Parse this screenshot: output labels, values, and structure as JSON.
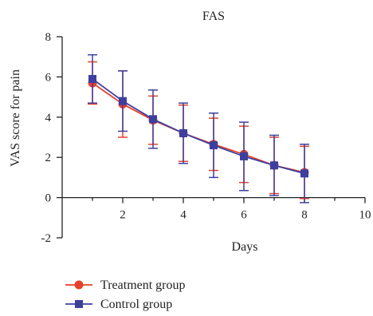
{
  "chart_data": {
    "type": "line",
    "title": "FAS",
    "xlabel": "Days",
    "ylabel": "VAS score for pain",
    "xlim": [
      0,
      10
    ],
    "ylim": [
      -2,
      8
    ],
    "xticks": [
      "2",
      "4",
      "6",
      "8",
      "10"
    ],
    "yticks": [
      "-2",
      "0",
      "2",
      "4",
      "6",
      "8"
    ],
    "grid": false,
    "legend_position": "bottom-left",
    "series": [
      {
        "name": "Treatment group",
        "color": "#e8412a",
        "marker": "circle",
        "x": [
          1,
          2,
          3,
          4,
          5,
          6,
          7,
          8
        ],
        "y": [
          5.7,
          4.65,
          3.85,
          3.2,
          2.65,
          2.15,
          1.6,
          1.25
        ],
        "error": [
          1.05,
          1.65,
          1.2,
          1.4,
          1.3,
          1.4,
          1.4,
          1.3
        ]
      },
      {
        "name": "Control group",
        "color": "#3d3f9e",
        "marker": "square",
        "x": [
          1,
          2,
          3,
          4,
          5,
          6,
          7,
          8
        ],
        "y": [
          5.9,
          4.8,
          3.9,
          3.2,
          2.6,
          2.05,
          1.6,
          1.2
        ],
        "error": [
          1.2,
          1.5,
          1.45,
          1.5,
          1.6,
          1.7,
          1.5,
          1.45
        ]
      }
    ]
  }
}
